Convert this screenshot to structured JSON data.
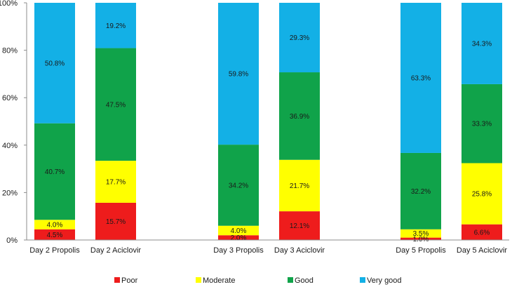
{
  "chart_data": {
    "type": "bar",
    "stacked": true,
    "percent": true,
    "title": "",
    "xlabel": "",
    "ylabel": "",
    "ylim": [
      0,
      100
    ],
    "y_ticks": [
      "0%",
      "20%",
      "40%",
      "60%",
      "80%",
      "100%"
    ],
    "grid": false,
    "legend_position": "bottom",
    "categories": [
      "Day 2  Propolis",
      "Day 2 Aciclovir",
      "Day 3  Propolis",
      "Day 3 Aciclovir",
      "Day 5  Propolis",
      "Day 5 Aciclovir"
    ],
    "series": [
      {
        "name": "Poor",
        "color": "#ee1c1c",
        "values": [
          4.5,
          15.7,
          2.0,
          12.1,
          1.0,
          6.6
        ],
        "labels": [
          "4.5%",
          "15.7%",
          "2.0%",
          "12.1%",
          "1.0%",
          "6.6%"
        ]
      },
      {
        "name": "Moderate",
        "color": "#ffff00",
        "values": [
          4.0,
          17.7,
          4.0,
          21.7,
          3.5,
          25.8
        ],
        "labels": [
          "4.0%",
          "17.7%",
          "4.0%",
          "21.7%",
          "3.5%",
          "25.8%"
        ]
      },
      {
        "name": "Good",
        "color": "#10a34a",
        "values": [
          40.7,
          47.5,
          34.2,
          36.9,
          32.2,
          33.3
        ],
        "labels": [
          "40.7%",
          "47.5%",
          "34.2%",
          "36.9%",
          "32.2%",
          "33.3%"
        ]
      },
      {
        "name": "Very good",
        "color": "#13b0e6",
        "values": [
          50.8,
          19.2,
          59.8,
          29.3,
          63.3,
          34.3
        ],
        "labels": [
          "50.8%",
          "19.2%",
          "59.8%",
          "29.3%",
          "63.3%",
          "34.3%"
        ]
      }
    ]
  }
}
